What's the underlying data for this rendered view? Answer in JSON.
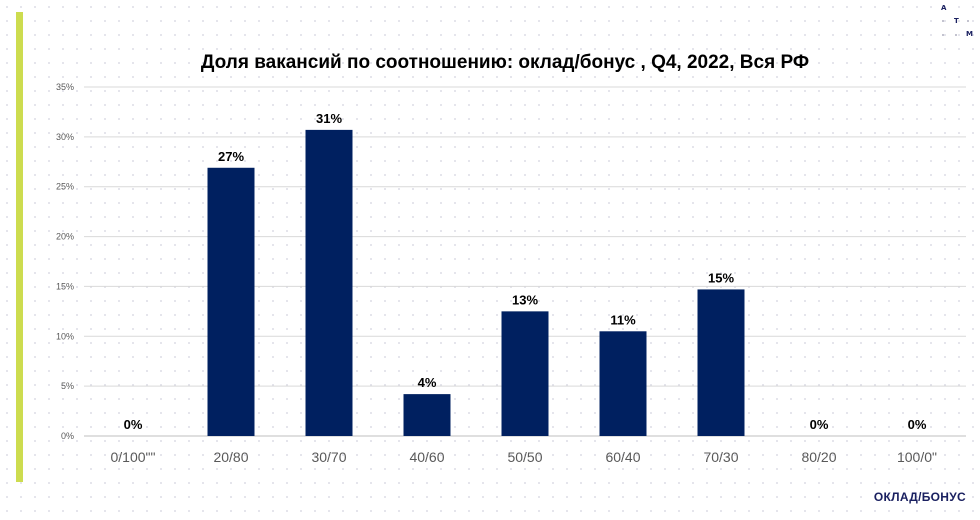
{
  "title": "Доля вакансий по соотношению: оклад/бонус , Q4, 2022, Вся РФ",
  "logo": {
    "letters": [
      "А",
      "Т",
      "М"
    ]
  },
  "colors": {
    "bar": "#002060",
    "accent": "#cddc4f",
    "grid": "#d9d9d9"
  },
  "chart_data": {
    "type": "bar",
    "title": "Доля вакансий по соотношению: оклад/бонус , Q4, 2022, Вся РФ",
    "xlabel": "ОКЛАД/БОНУС",
    "ylabel": "",
    "ylim": [
      0,
      35
    ],
    "yticks": [
      "0%",
      "5%",
      "10%",
      "15%",
      "20%",
      "25%",
      "30%",
      "35%"
    ],
    "ytick_values": [
      0,
      5,
      10,
      15,
      20,
      25,
      30,
      35
    ],
    "grid": true,
    "legend": "none",
    "categories": [
      "0/100\"\"",
      "20/80",
      "30/70",
      "40/60",
      "50/50",
      "60/40",
      "70/30",
      "80/20",
      "100/0\""
    ],
    "values": [
      0,
      26.9,
      30.7,
      4.2,
      12.5,
      10.5,
      14.7,
      0,
      0
    ],
    "data_labels": [
      "0%",
      "27%",
      "31%",
      "4%",
      "13%",
      "11%",
      "15%",
      "0%",
      "0%"
    ]
  }
}
